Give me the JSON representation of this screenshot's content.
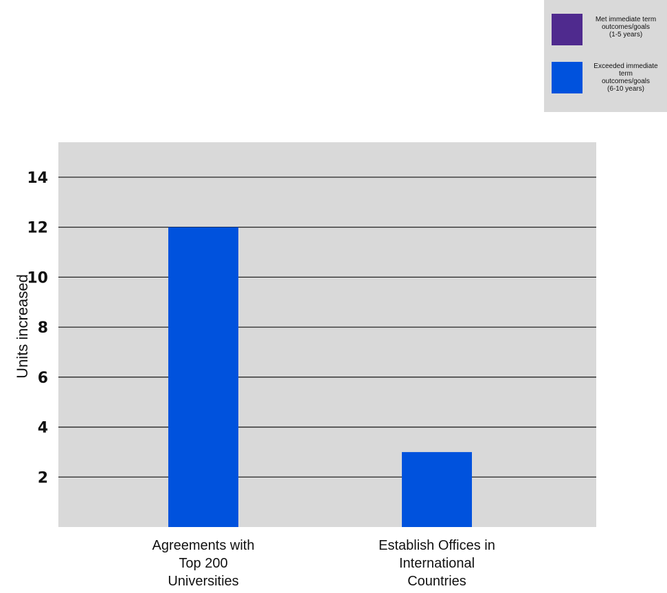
{
  "chart_data": {
    "type": "bar",
    "categories": [
      [
        "Agreements with",
        "Top 200",
        "Universities"
      ],
      [
        "Establish Offices in",
        "International",
        "Countries"
      ]
    ],
    "series": [
      {
        "name": "Met immediate term outcomes/goals (1-5 years)",
        "color": "#4f2a8e",
        "values": [
          null,
          null
        ]
      },
      {
        "name": "Exceeded immediate term outcomes/goals (6-10 years)",
        "color": "#0052dd",
        "values": [
          12,
          3
        ]
      }
    ],
    "legend_lines": [
      [
        "Met immediate term",
        "outcomes/goals",
        "(1-5 years)"
      ],
      [
        "Exceeded immediate",
        "term",
        "outcomes/goals",
        "(6-10 years)"
      ]
    ],
    "ylabel": "Units increased",
    "yticks": [
      2,
      4,
      6,
      8,
      10,
      12,
      14
    ],
    "ylim": [
      0,
      15.4
    ],
    "grid": true,
    "legend_position": "top-right",
    "plot_background": "#d9d9d9"
  }
}
